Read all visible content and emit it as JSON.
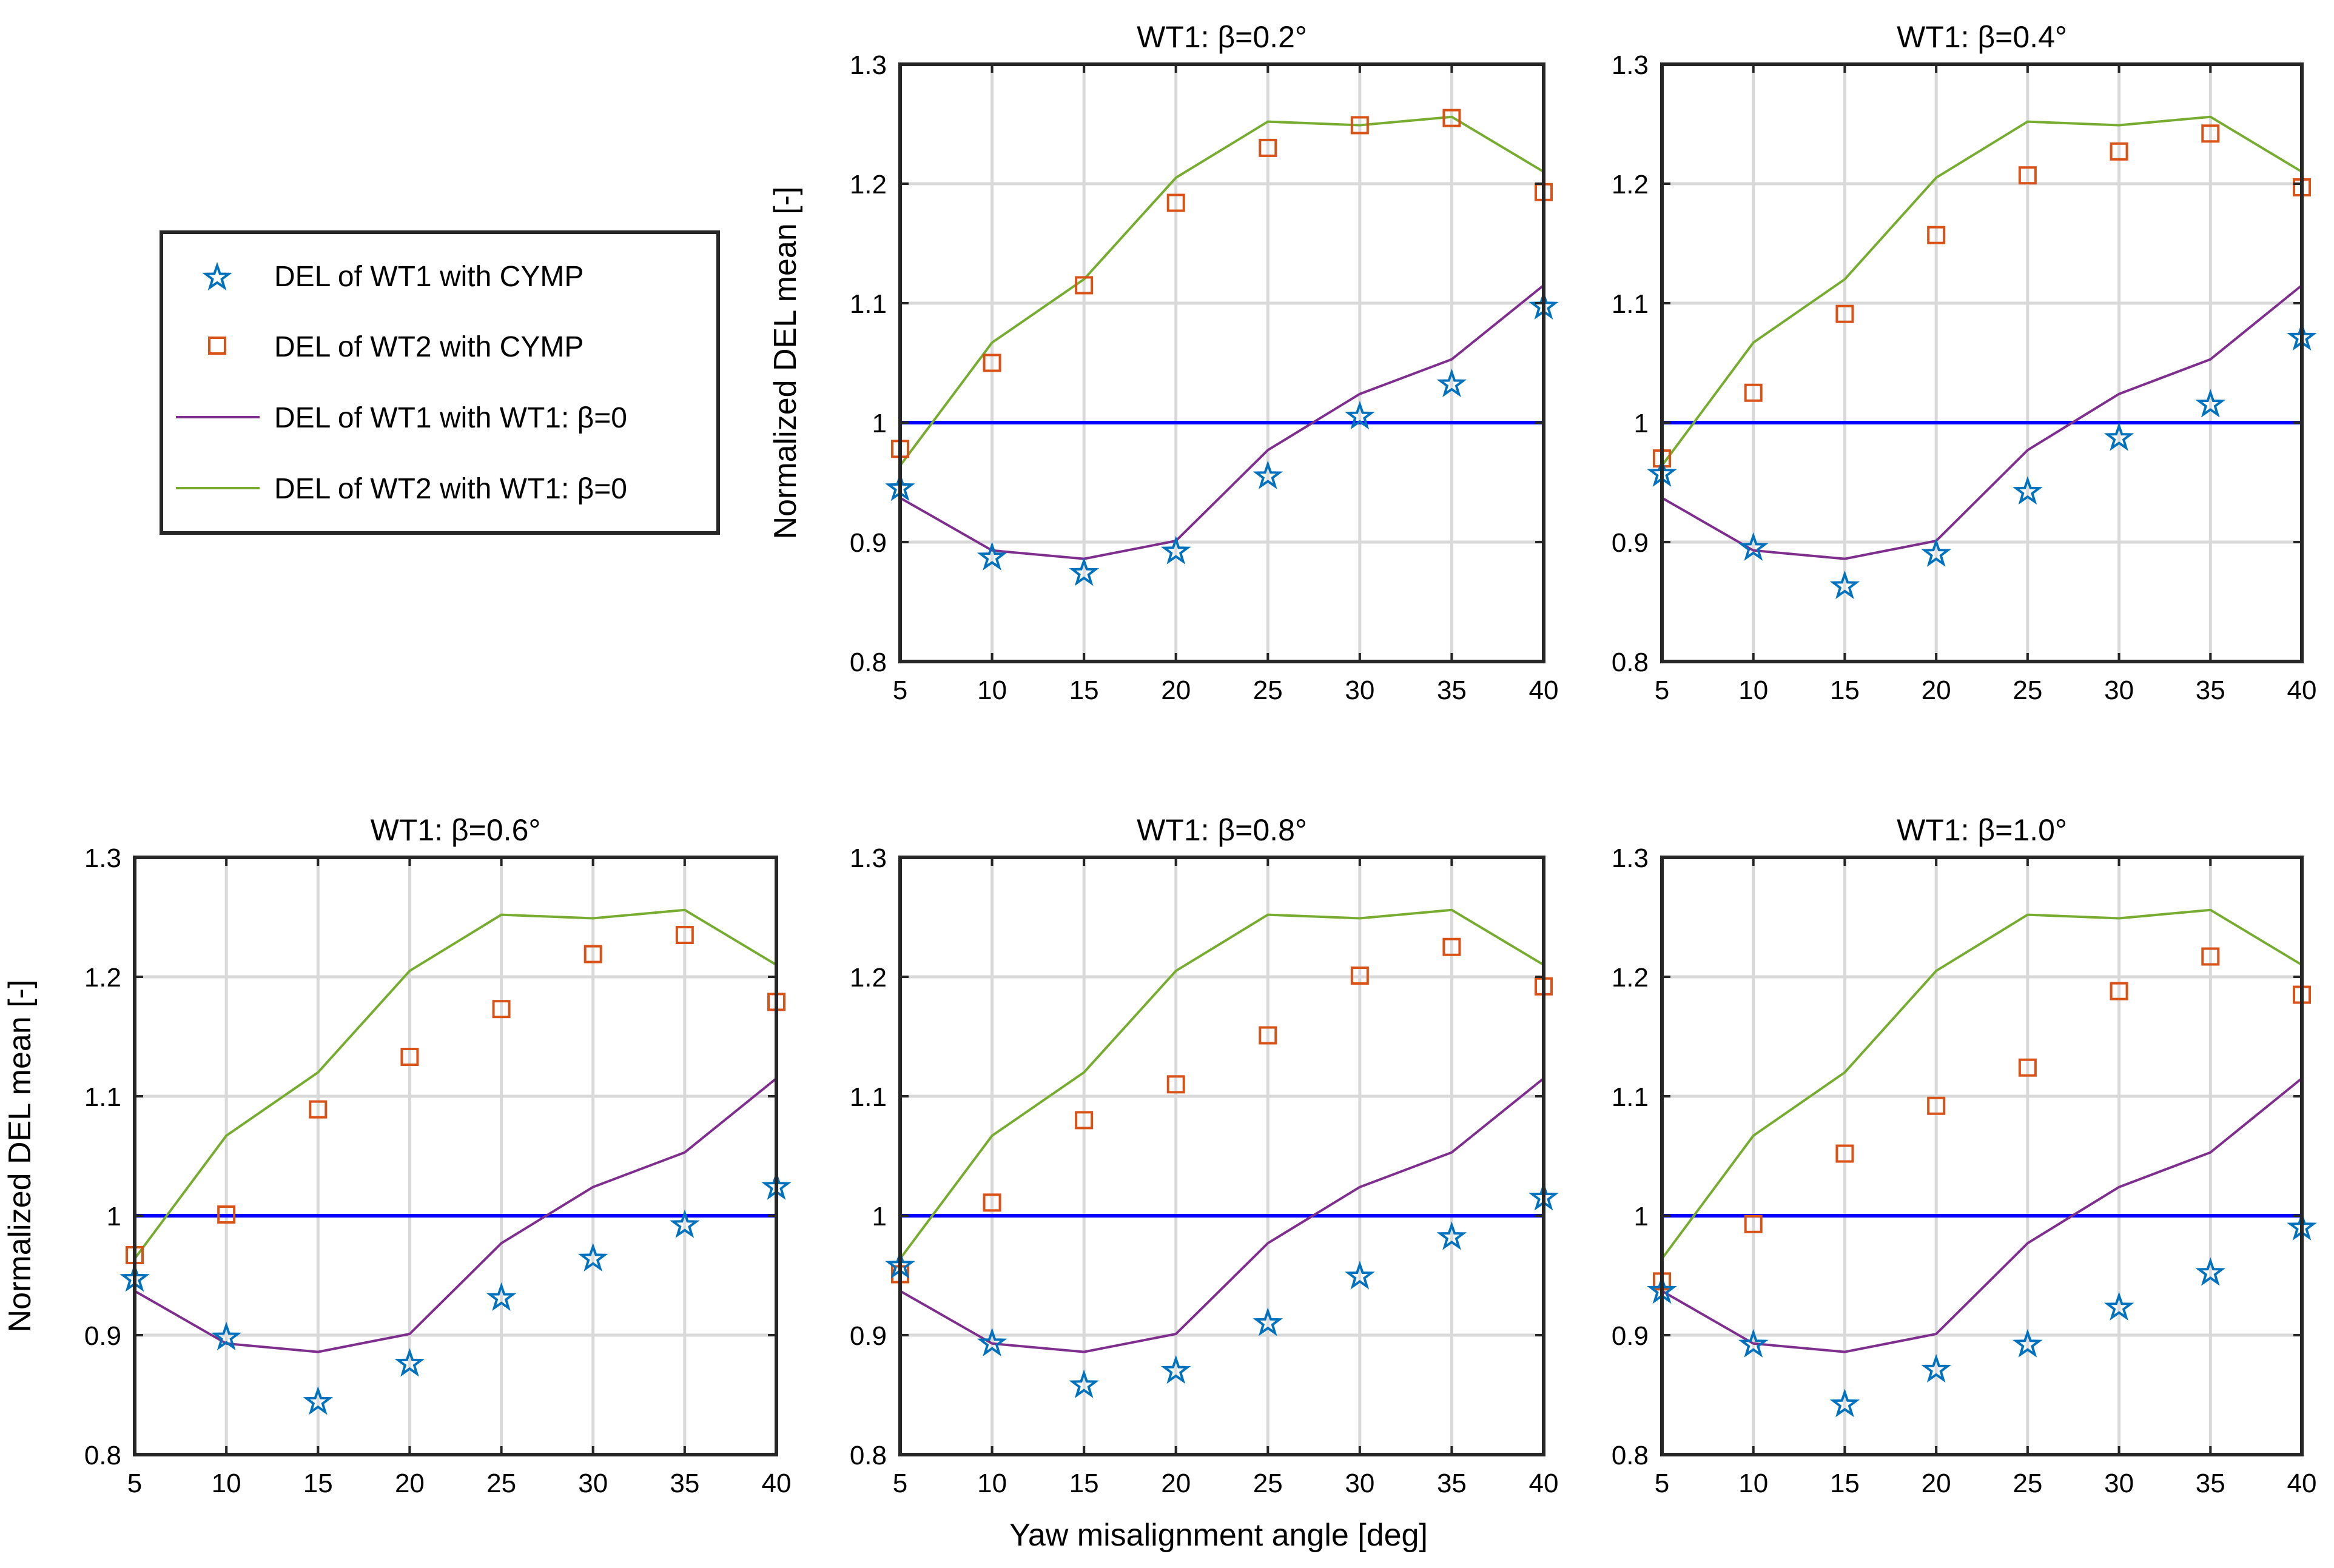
{
  "figure": {
    "xlabel": "Yaw misalignment angle [deg]",
    "ylabel": "Normalized DEL mean [-]"
  },
  "legend": {
    "entries": [
      {
        "label": "DEL of WT1 with CYMP",
        "marker": "star",
        "color": "#0072BD"
      },
      {
        "label": "DEL of WT2 with CYMP",
        "marker": "square",
        "color": "#D95319"
      },
      {
        "label": "DEL of WT1 with WT1: β=0",
        "marker": "line",
        "color": "#7E2F8E"
      },
      {
        "label": "DEL of WT2 with WT1: β=0",
        "marker": "line",
        "color": "#77AC30"
      }
    ]
  },
  "colors": {
    "wt1_star": "#0072BD",
    "wt2_square": "#D95319",
    "wt1_baseline": "#7E2F8E",
    "wt2_baseline": "#77AC30",
    "reference": "#0000FF",
    "grid": "#D9D9D9"
  },
  "chart_data": [
    {
      "type": "line",
      "title": "WT1:  β=0.2°",
      "x": [
        5,
        10,
        15,
        20,
        25,
        30,
        35,
        40
      ],
      "xlim": [
        5,
        40
      ],
      "ylim": [
        0.8,
        1.3
      ],
      "xticks": [
        "5",
        "10",
        "15",
        "20",
        "25",
        "30",
        "35",
        "40"
      ],
      "yticks": [
        "0.8",
        "0.9",
        "1",
        "1.1",
        "1.2",
        "1.3"
      ],
      "grid": true,
      "show_ylabel": true,
      "show_xlabel": false,
      "series": [
        {
          "name": "DEL of WT1 with CYMP",
          "style": "star",
          "values": [
            0.945,
            0.887,
            0.874,
            0.892,
            0.955,
            1.005,
            1.032,
            1.097
          ]
        },
        {
          "name": "DEL of WT2 with CYMP",
          "style": "square",
          "values": [
            0.978,
            1.05,
            1.115,
            1.184,
            1.23,
            1.249,
            1.255,
            1.193
          ]
        },
        {
          "name": "DEL of WT1 with WT1: β=0",
          "style": "line",
          "values": [
            0.937,
            0.893,
            0.886,
            0.901,
            0.977,
            1.024,
            1.053,
            1.115
          ]
        },
        {
          "name": "DEL of WT2 with WT1: β=0",
          "style": "line",
          "values": [
            0.964,
            1.067,
            1.12,
            1.205,
            1.252,
            1.249,
            1.256,
            1.21
          ]
        },
        {
          "name": "",
          "style": "reference",
          "values": [
            1,
            1,
            1,
            1,
            1,
            1,
            1,
            1
          ]
        }
      ]
    },
    {
      "type": "line",
      "title": "WT1:  β=0.4°",
      "x": [
        5,
        10,
        15,
        20,
        25,
        30,
        35,
        40
      ],
      "xlim": [
        5,
        40
      ],
      "ylim": [
        0.8,
        1.3
      ],
      "xticks": [
        "5",
        "10",
        "15",
        "20",
        "25",
        "30",
        "35",
        "40"
      ],
      "yticks": [
        "0.8",
        "0.9",
        "1",
        "1.1",
        "1.2",
        "1.3"
      ],
      "grid": true,
      "show_ylabel": false,
      "show_xlabel": false,
      "series": [
        {
          "name": "DEL of WT1 with CYMP",
          "style": "star",
          "values": [
            0.957,
            0.895,
            0.863,
            0.89,
            0.942,
            0.987,
            1.015,
            1.071
          ]
        },
        {
          "name": "DEL of WT2 with CYMP",
          "style": "square",
          "values": [
            0.97,
            1.025,
            1.091,
            1.157,
            1.207,
            1.227,
            1.242,
            1.197
          ]
        },
        {
          "name": "DEL of WT1 with WT1: β=0",
          "style": "line",
          "values": [
            0.937,
            0.893,
            0.886,
            0.901,
            0.977,
            1.024,
            1.053,
            1.115
          ]
        },
        {
          "name": "DEL of WT2 with WT1: β=0",
          "style": "line",
          "values": [
            0.964,
            1.067,
            1.12,
            1.205,
            1.252,
            1.249,
            1.256,
            1.21
          ]
        },
        {
          "name": "",
          "style": "reference",
          "values": [
            1,
            1,
            1,
            1,
            1,
            1,
            1,
            1
          ]
        }
      ]
    },
    {
      "type": "line",
      "title": "WT1:  β=0.6°",
      "x": [
        5,
        10,
        15,
        20,
        25,
        30,
        35,
        40
      ],
      "xlim": [
        5,
        40
      ],
      "ylim": [
        0.8,
        1.3
      ],
      "xticks": [
        "5",
        "10",
        "15",
        "20",
        "25",
        "30",
        "35",
        "40"
      ],
      "yticks": [
        "0.8",
        "0.9",
        "1",
        "1.1",
        "1.2",
        "1.3"
      ],
      "grid": true,
      "show_ylabel": true,
      "show_xlabel": false,
      "series": [
        {
          "name": "DEL of WT1 with CYMP",
          "style": "star",
          "values": [
            0.947,
            0.898,
            0.844,
            0.876,
            0.931,
            0.964,
            0.992,
            1.024
          ]
        },
        {
          "name": "DEL of WT2 with CYMP",
          "style": "square",
          "values": [
            0.967,
            1.001,
            1.089,
            1.133,
            1.173,
            1.219,
            1.235,
            1.179
          ]
        },
        {
          "name": "DEL of WT1 with WT1: β=0",
          "style": "line",
          "values": [
            0.937,
            0.893,
            0.886,
            0.901,
            0.977,
            1.024,
            1.053,
            1.115
          ]
        },
        {
          "name": "DEL of WT2 with WT1: β=0",
          "style": "line",
          "values": [
            0.964,
            1.067,
            1.12,
            1.205,
            1.252,
            1.249,
            1.256,
            1.21
          ]
        },
        {
          "name": "",
          "style": "reference",
          "values": [
            1,
            1,
            1,
            1,
            1,
            1,
            1,
            1
          ]
        }
      ]
    },
    {
      "type": "line",
      "title": "WT1:  β=0.8°",
      "x": [
        5,
        10,
        15,
        20,
        25,
        30,
        35,
        40
      ],
      "xlim": [
        5,
        40
      ],
      "ylim": [
        0.8,
        1.3
      ],
      "xticks": [
        "5",
        "10",
        "15",
        "20",
        "25",
        "30",
        "35",
        "40"
      ],
      "yticks": [
        "0.8",
        "0.9",
        "1",
        "1.1",
        "1.2",
        "1.3"
      ],
      "grid": true,
      "show_ylabel": false,
      "show_xlabel": true,
      "series": [
        {
          "name": "DEL of WT1 with CYMP",
          "style": "star",
          "values": [
            0.958,
            0.893,
            0.858,
            0.87,
            0.91,
            0.949,
            0.982,
            1.015
          ]
        },
        {
          "name": "DEL of WT2 with CYMP",
          "style": "square",
          "values": [
            0.951,
            1.011,
            1.08,
            1.11,
            1.151,
            1.201,
            1.225,
            1.192
          ]
        },
        {
          "name": "DEL of WT1 with WT1: β=0",
          "style": "line",
          "values": [
            0.937,
            0.893,
            0.886,
            0.901,
            0.977,
            1.024,
            1.053,
            1.115
          ]
        },
        {
          "name": "DEL of WT2 with WT1: β=0",
          "style": "line",
          "values": [
            0.964,
            1.067,
            1.12,
            1.205,
            1.252,
            1.249,
            1.256,
            1.21
          ]
        },
        {
          "name": "",
          "style": "reference",
          "values": [
            1,
            1,
            1,
            1,
            1,
            1,
            1,
            1
          ]
        }
      ]
    },
    {
      "type": "line",
      "title": "WT1:  β=1.0°",
      "x": [
        5,
        10,
        15,
        20,
        25,
        30,
        35,
        40
      ],
      "xlim": [
        5,
        40
      ],
      "ylim": [
        0.8,
        1.3
      ],
      "xticks": [
        "5",
        "10",
        "15",
        "20",
        "25",
        "30",
        "35",
        "40"
      ],
      "yticks": [
        "0.8",
        "0.9",
        "1",
        "1.1",
        "1.2",
        "1.3"
      ],
      "grid": true,
      "show_ylabel": false,
      "show_xlabel": false,
      "series": [
        {
          "name": "DEL of WT1 with CYMP",
          "style": "star",
          "values": [
            0.937,
            0.892,
            0.842,
            0.871,
            0.892,
            0.923,
            0.952,
            0.99
          ]
        },
        {
          "name": "DEL of WT2 with CYMP",
          "style": "square",
          "values": [
            0.945,
            0.993,
            1.052,
            1.092,
            1.124,
            1.188,
            1.217,
            1.185
          ]
        },
        {
          "name": "DEL of WT1 with WT1: β=0",
          "style": "line",
          "values": [
            0.937,
            0.893,
            0.886,
            0.901,
            0.977,
            1.024,
            1.053,
            1.115
          ]
        },
        {
          "name": "DEL of WT2 with WT1: β=0",
          "style": "line",
          "values": [
            0.964,
            1.067,
            1.12,
            1.205,
            1.252,
            1.249,
            1.256,
            1.21
          ]
        },
        {
          "name": "",
          "style": "reference",
          "values": [
            1,
            1,
            1,
            1,
            1,
            1,
            1,
            1
          ]
        }
      ]
    }
  ]
}
